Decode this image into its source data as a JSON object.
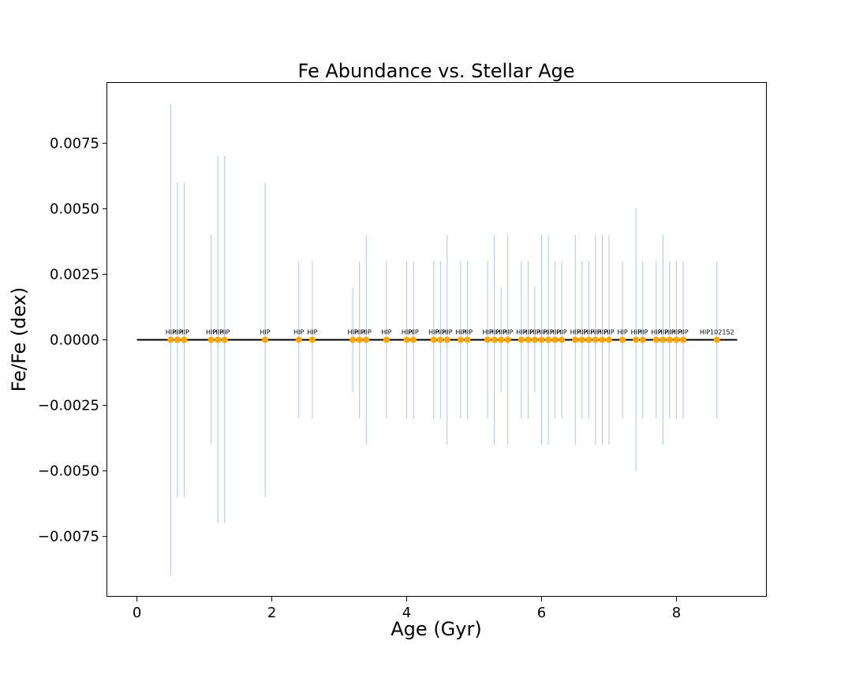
{
  "chart_data": {
    "type": "scatter",
    "title": "Fe Abundance vs. Stellar Age",
    "xlabel": "Age (Gyr)",
    "ylabel": "Fe/Fe (dex)",
    "xlim": [
      -0.44,
      9.34
    ],
    "ylim": [
      -0.0098,
      0.0098
    ],
    "xticks": [
      0,
      2,
      4,
      6,
      8
    ],
    "yticks": [
      -0.0075,
      -0.005,
      -0.0025,
      0.0,
      0.0025,
      0.005,
      0.0075
    ],
    "ytick_labels": [
      "−0.0075",
      "−0.0050",
      "−0.0025",
      "0.0000",
      "0.0025",
      "0.0050",
      "0.0075"
    ],
    "grid": false,
    "reference_line": {
      "y": 0.0,
      "x_from": 0.0,
      "x_to": 8.9,
      "color": "#000000"
    },
    "marker_color": "#ffa500",
    "errorbar_color": "#b0c4de",
    "points": [
      {
        "x": 0.5,
        "y": 0.0,
        "err": 0.009,
        "label": "HIP"
      },
      {
        "x": 0.6,
        "y": 0.0,
        "err": 0.006,
        "label": "HIP"
      },
      {
        "x": 0.7,
        "y": 0.0,
        "err": 0.006,
        "label": "HIP"
      },
      {
        "x": 1.1,
        "y": 0.0,
        "err": 0.004,
        "label": "HIP"
      },
      {
        "x": 1.2,
        "y": 0.0,
        "err": 0.007,
        "label": "HIP"
      },
      {
        "x": 1.3,
        "y": 0.0,
        "err": 0.007,
        "label": "HIP"
      },
      {
        "x": 1.9,
        "y": 0.0,
        "err": 0.006,
        "label": "HIP"
      },
      {
        "x": 2.4,
        "y": 0.0,
        "err": 0.003,
        "label": "HIP"
      },
      {
        "x": 2.6,
        "y": 0.0,
        "err": 0.003,
        "label": "HIP"
      },
      {
        "x": 3.2,
        "y": 0.0,
        "err": 0.002,
        "label": "HIP"
      },
      {
        "x": 3.3,
        "y": 0.0,
        "err": 0.003,
        "label": "HIP"
      },
      {
        "x": 3.4,
        "y": 0.0,
        "err": 0.004,
        "label": "HIP"
      },
      {
        "x": 3.7,
        "y": 0.0,
        "err": 0.003,
        "label": "HIP"
      },
      {
        "x": 4.0,
        "y": 0.0,
        "err": 0.003,
        "label": "HIP"
      },
      {
        "x": 4.1,
        "y": 0.0,
        "err": 0.003,
        "label": "HIP"
      },
      {
        "x": 4.4,
        "y": 0.0,
        "err": 0.003,
        "label": "HIP"
      },
      {
        "x": 4.5,
        "y": 0.0,
        "err": 0.003,
        "label": "HIP"
      },
      {
        "x": 4.6,
        "y": 0.0,
        "err": 0.004,
        "label": "HIP"
      },
      {
        "x": 4.8,
        "y": 0.0,
        "err": 0.003,
        "label": "HIP"
      },
      {
        "x": 4.9,
        "y": 0.0,
        "err": 0.003,
        "label": "HIP"
      },
      {
        "x": 5.2,
        "y": 0.0,
        "err": 0.003,
        "label": "HIP"
      },
      {
        "x": 5.3,
        "y": 0.0,
        "err": 0.004,
        "label": "HIP"
      },
      {
        "x": 5.4,
        "y": 0.0,
        "err": 0.002,
        "label": "HIP"
      },
      {
        "x": 5.5,
        "y": 0.0,
        "err": 0.004,
        "label": "HIP"
      },
      {
        "x": 5.7,
        "y": 0.0,
        "err": 0.003,
        "label": "HIP"
      },
      {
        "x": 5.8,
        "y": 0.0,
        "err": 0.003,
        "label": "HIP"
      },
      {
        "x": 5.9,
        "y": 0.0,
        "err": 0.002,
        "label": "HIP"
      },
      {
        "x": 6.0,
        "y": 0.0,
        "err": 0.004,
        "label": "HIP"
      },
      {
        "x": 6.1,
        "y": 0.0,
        "err": 0.004,
        "label": "HIP"
      },
      {
        "x": 6.2,
        "y": 0.0,
        "err": 0.003,
        "label": "HIP"
      },
      {
        "x": 6.3,
        "y": 0.0,
        "err": 0.003,
        "label": "HIP"
      },
      {
        "x": 6.5,
        "y": 0.0,
        "err": 0.004,
        "label": "HIP"
      },
      {
        "x": 6.6,
        "y": 0.0,
        "err": 0.003,
        "label": "HIP"
      },
      {
        "x": 6.7,
        "y": 0.0,
        "err": 0.003,
        "label": "HIP"
      },
      {
        "x": 6.8,
        "y": 0.0,
        "err": 0.004,
        "label": "HIP"
      },
      {
        "x": 6.9,
        "y": 0.0,
        "err": 0.004,
        "label": "HIP"
      },
      {
        "x": 7.0,
        "y": 0.0,
        "err": 0.004,
        "label": "HIP"
      },
      {
        "x": 7.2,
        "y": 0.0,
        "err": 0.003,
        "label": "HIP"
      },
      {
        "x": 7.4,
        "y": 0.0,
        "err": 0.005,
        "label": "HIP"
      },
      {
        "x": 7.5,
        "y": 0.0,
        "err": 0.003,
        "label": "HIP"
      },
      {
        "x": 7.7,
        "y": 0.0,
        "err": 0.003,
        "label": "HIP"
      },
      {
        "x": 7.8,
        "y": 0.0,
        "err": 0.004,
        "label": "HIP"
      },
      {
        "x": 7.9,
        "y": 0.0,
        "err": 0.003,
        "label": "HIP"
      },
      {
        "x": 8.0,
        "y": 0.0,
        "err": 0.003,
        "label": "HIP"
      },
      {
        "x": 8.1,
        "y": 0.0,
        "err": 0.003,
        "label": "HIP"
      },
      {
        "x": 8.6,
        "y": 0.0,
        "err": 0.003,
        "label": "HIP102152"
      }
    ]
  }
}
